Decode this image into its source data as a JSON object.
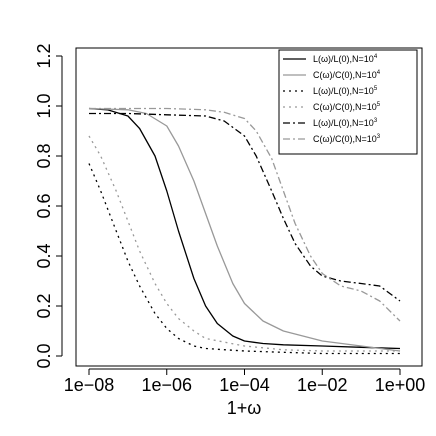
{
  "chart_data": {
    "type": "line",
    "title": "",
    "xlabel": "1+ω",
    "ylabel": "",
    "x_scale": "log",
    "xlim": [
      1e-08,
      1
    ],
    "ylim": [
      0,
      1.2
    ],
    "x_ticks": [
      1e-08,
      1e-06,
      0.0001,
      0.01,
      1
    ],
    "x_tick_labels": [
      "1e−08",
      "1e−06",
      "1e−04",
      "1e−02",
      "1e+00"
    ],
    "y_ticks": [
      0,
      0.2,
      0.4,
      0.6,
      0.8,
      1.0,
      1.2
    ],
    "y_tick_labels": [
      "0.0",
      "0.2",
      "0.4",
      "0.6",
      "0.8",
      "1.0",
      "1.2"
    ],
    "grid": false,
    "legend_position": "top-right",
    "series": [
      {
        "name": "L(ω)/L(0),N=10⁴",
        "label_main": "L(ω)/L(0),N=10",
        "label_exp": "4",
        "color": "#000000",
        "dash": "",
        "x": [
          1e-08,
          3e-08,
          1e-07,
          2e-07,
          5e-07,
          1e-06,
          2e-06,
          5e-06,
          1e-05,
          2e-05,
          5e-05,
          0.0001,
          0.0003,
          0.001,
          0.01,
          0.1,
          1
        ],
        "y": [
          0.99,
          0.985,
          0.96,
          0.91,
          0.8,
          0.66,
          0.5,
          0.31,
          0.2,
          0.13,
          0.08,
          0.06,
          0.05,
          0.045,
          0.04,
          0.035,
          0.03
        ]
      },
      {
        "name": "C(ω)/C(0),N=10⁴",
        "label_main": "C(ω)/C(0),N=10",
        "label_exp": "4",
        "color": "#999999",
        "dash": "",
        "x": [
          1e-08,
          1e-07,
          3e-07,
          1e-06,
          2e-06,
          5e-06,
          1e-05,
          2e-05,
          5e-05,
          0.0001,
          0.0003,
          0.001,
          0.01,
          0.1,
          1
        ],
        "y": [
          0.99,
          0.985,
          0.97,
          0.92,
          0.84,
          0.7,
          0.57,
          0.44,
          0.29,
          0.21,
          0.14,
          0.1,
          0.06,
          0.04,
          0.02
        ]
      },
      {
        "name": "L(ω)/L(0),N=10⁵",
        "label_main": "L(ω)/L(0),N=10",
        "label_exp": "5",
        "color": "#000000",
        "dash": "2,4",
        "x": [
          1e-08,
          2e-08,
          5e-08,
          1e-07,
          2e-07,
          5e-07,
          1e-06,
          2e-06,
          5e-06,
          1e-05,
          0.0001,
          0.001,
          0.01,
          1
        ],
        "y": [
          0.77,
          0.66,
          0.5,
          0.38,
          0.28,
          0.17,
          0.11,
          0.07,
          0.04,
          0.03,
          0.02,
          0.015,
          0.01,
          0.01
        ]
      },
      {
        "name": "C(ω)/C(0),N=10⁵",
        "label_main": "C(ω)/C(0),N=10",
        "label_exp": "5",
        "color": "#999999",
        "dash": "2,4",
        "x": [
          1e-08,
          2e-08,
          5e-08,
          1e-07,
          2e-07,
          5e-07,
          1e-06,
          2e-06,
          5e-06,
          1e-05,
          0.0001,
          0.001,
          0.01,
          1
        ],
        "y": [
          0.88,
          0.8,
          0.66,
          0.54,
          0.42,
          0.29,
          0.21,
          0.15,
          0.1,
          0.07,
          0.04,
          0.025,
          0.02,
          0.02
        ]
      },
      {
        "name": "L(ω)/L(0),N=10³",
        "label_main": "L(ω)/L(0),N=10",
        "label_exp": "3",
        "color": "#000000",
        "dash": "7,3,2,3",
        "x": [
          1e-08,
          1e-07,
          1e-06,
          1e-05,
          3e-05,
          0.0001,
          0.0002,
          0.0005,
          0.001,
          0.002,
          0.005,
          0.01,
          0.03,
          0.1,
          0.3,
          1
        ],
        "y": [
          0.97,
          0.97,
          0.965,
          0.96,
          0.94,
          0.88,
          0.8,
          0.66,
          0.55,
          0.45,
          0.36,
          0.32,
          0.3,
          0.29,
          0.28,
          0.22
        ]
      },
      {
        "name": "C(ω)/C(0),N=10³",
        "label_main": "C(ω)/C(0),N=10",
        "label_exp": "3",
        "color": "#999999",
        "dash": "7,3,2,3",
        "x": [
          1e-08,
          1e-07,
          1e-06,
          1e-05,
          3e-05,
          0.0001,
          0.0002,
          0.0005,
          0.001,
          0.002,
          0.005,
          0.01,
          0.03,
          0.1,
          0.3,
          1
        ],
        "y": [
          0.99,
          0.99,
          0.99,
          0.985,
          0.975,
          0.95,
          0.9,
          0.79,
          0.66,
          0.53,
          0.4,
          0.33,
          0.28,
          0.26,
          0.22,
          0.14
        ]
      }
    ]
  }
}
